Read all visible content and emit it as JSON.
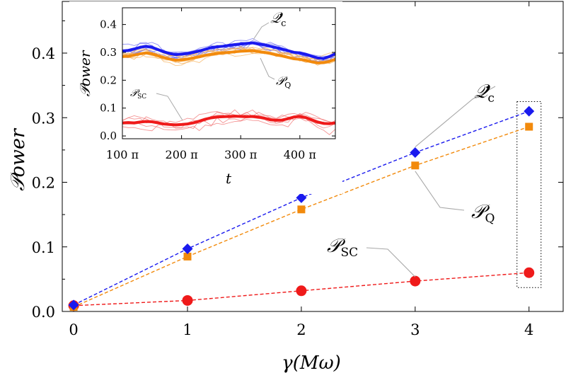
{
  "chart_data": [
    {
      "type": "line",
      "title": "",
      "xlabel": "γ(Mω)",
      "ylabel": "𝒫ower",
      "xlim": [
        -0.1,
        4.3
      ],
      "ylim": [
        0,
        0.48
      ],
      "x": [
        0,
        1,
        2,
        3,
        4
      ],
      "x_ticks": [
        0,
        1,
        2,
        3,
        4
      ],
      "x_tick_labels": [
        "0",
        "1",
        "2",
        "3",
        "4"
      ],
      "y_ticks": [
        0.0,
        0.1,
        0.2,
        0.3,
        0.4
      ],
      "y_tick_labels": [
        "0.0",
        "0.1",
        "0.2",
        "0.3",
        "0.4"
      ],
      "grid": false,
      "legend": "none",
      "series": [
        {
          "name": "Q̇c",
          "label_main": "𝒬̇",
          "label_sub": "c",
          "marker": "diamond",
          "color": "#1a1aee",
          "values": [
            0.01,
            0.097,
            0.176,
            0.246,
            0.31
          ]
        },
        {
          "name": "𝒫Q",
          "label_main": "𝒫",
          "label_sub": "Q",
          "marker": "square",
          "color": "#f28a0c",
          "values": [
            0.007,
            0.085,
            0.158,
            0.226,
            0.286
          ]
        },
        {
          "name": "𝒫SC",
          "label_main": "𝒫",
          "label_sub": "SC",
          "marker": "circle",
          "color": "#ef1a1a",
          "values": [
            0.009,
            0.017,
            0.032,
            0.047,
            0.06
          ]
        }
      ],
      "annotations": [
        "dotted box around γ = 4 points"
      ]
    },
    {
      "type": "line",
      "title": "",
      "xlabel": "t",
      "ylabel": "𝒫ower",
      "xlim": [
        100,
        460
      ],
      "ylim": [
        -0.01,
        0.46
      ],
      "x_ticks": [
        100,
        200,
        300,
        400
      ],
      "x_tick_labels": [
        "100 π",
        "200 π",
        "300 π",
        "400 π"
      ],
      "y_ticks": [
        0.0,
        0.1,
        0.2,
        0.3,
        0.4
      ],
      "y_tick_labels": [
        "0.0",
        "0.1",
        "0.2",
        "0.3",
        "0.4"
      ],
      "grid": false,
      "legend": "none",
      "x": [
        100,
        110,
        120,
        130,
        140,
        150,
        160,
        170,
        180,
        190,
        200,
        210,
        220,
        230,
        240,
        250,
        260,
        270,
        280,
        290,
        300,
        310,
        320,
        330,
        340,
        350,
        360,
        370,
        380,
        390,
        400,
        410,
        420,
        430,
        440,
        450,
        460
      ],
      "series": [
        {
          "name": "Q̇c",
          "label_main": "𝒬̇",
          "label_sub": "c",
          "color": "#1a1aee",
          "values": [
            0.305,
            0.307,
            0.312,
            0.318,
            0.322,
            0.318,
            0.31,
            0.302,
            0.296,
            0.292,
            0.294,
            0.296,
            0.3,
            0.305,
            0.311,
            0.317,
            0.32,
            0.322,
            0.325,
            0.328,
            0.33,
            0.332,
            0.334,
            0.33,
            0.327,
            0.322,
            0.317,
            0.312,
            0.306,
            0.3,
            0.298,
            0.293,
            0.286,
            0.28,
            0.278,
            0.285,
            0.295
          ]
        },
        {
          "name": "𝒫Q",
          "label_main": "𝒫",
          "label_sub": "Q",
          "color": "#f28a0c",
          "values": [
            0.285,
            0.286,
            0.29,
            0.295,
            0.298,
            0.295,
            0.288,
            0.281,
            0.276,
            0.272,
            0.273,
            0.276,
            0.28,
            0.284,
            0.289,
            0.293,
            0.296,
            0.298,
            0.3,
            0.302,
            0.304,
            0.305,
            0.306,
            0.303,
            0.3,
            0.296,
            0.291,
            0.287,
            0.282,
            0.277,
            0.275,
            0.271,
            0.266,
            0.262,
            0.263,
            0.268,
            0.275
          ]
        },
        {
          "name": "𝒫SC",
          "label_main": "𝒫",
          "label_sub": "SC",
          "color": "#ef1a1a",
          "values": [
            0.047,
            0.048,
            0.047,
            0.05,
            0.052,
            0.051,
            0.047,
            0.043,
            0.041,
            0.04,
            0.041,
            0.043,
            0.047,
            0.053,
            0.06,
            0.065,
            0.068,
            0.069,
            0.07,
            0.071,
            0.07,
            0.069,
            0.07,
            0.068,
            0.064,
            0.058,
            0.056,
            0.057,
            0.062,
            0.068,
            0.07,
            0.066,
            0.058,
            0.05,
            0.045,
            0.044,
            0.047
          ]
        }
      ]
    }
  ]
}
